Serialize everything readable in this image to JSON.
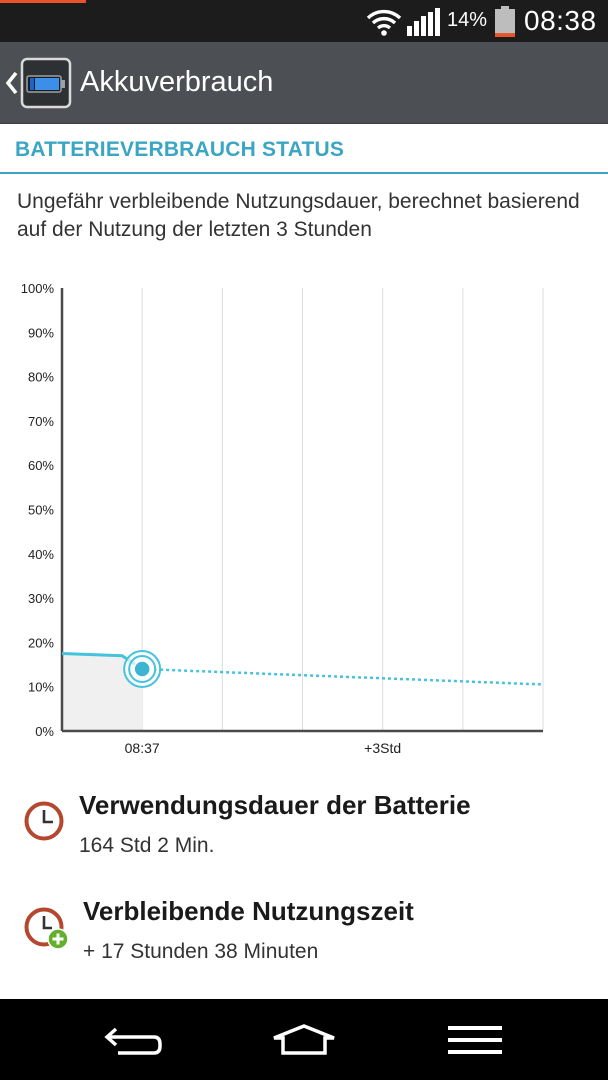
{
  "status_bar": {
    "battery_percent": "14%",
    "time": "08:38",
    "battery_level": 0.14,
    "battery_color": "#e8542a"
  },
  "action_bar": {
    "title": "Akkuverbrauch",
    "icon": "battery-app-icon"
  },
  "section": {
    "title": "BATTERIEVERBRAUCH STATUS",
    "description": "Ungefähr verbleibende Nutzungsdauer, berechnet basierend auf der Nutzung der letzten 3 Stunden"
  },
  "chart_data": {
    "type": "line",
    "ylim": [
      0,
      100
    ],
    "y_ticks": [
      "100%",
      "90%",
      "80%",
      "70%",
      "60%",
      "50%",
      "40%",
      "30%",
      "20%",
      "10%",
      "0%"
    ],
    "x_ticks": [
      "08:37",
      "+3Std"
    ],
    "series": [
      {
        "style": "solid",
        "color": "#45c3dc",
        "points": [
          [
            -1,
            17.5
          ],
          [
            -0.25,
            17
          ],
          [
            0,
            14
          ]
        ]
      },
      {
        "style": "dotted",
        "color": "#45c3dc",
        "points": [
          [
            0,
            14
          ],
          [
            5,
            10.5
          ]
        ]
      }
    ],
    "current": {
      "x": 0,
      "y": 14
    }
  },
  "usage": {
    "heading": "Verwendungsdauer der Batterie",
    "value": "164 Std 2 Min."
  },
  "remaining": {
    "heading": "Verbleibende Nutzungszeit",
    "value": "+ 17 Stunden 38 Minuten"
  },
  "colors": {
    "accent": "#3aa6c4",
    "action_bar": "#4c4f53",
    "clock_icon": "#b5472f",
    "add_badge": "#62b02e"
  }
}
